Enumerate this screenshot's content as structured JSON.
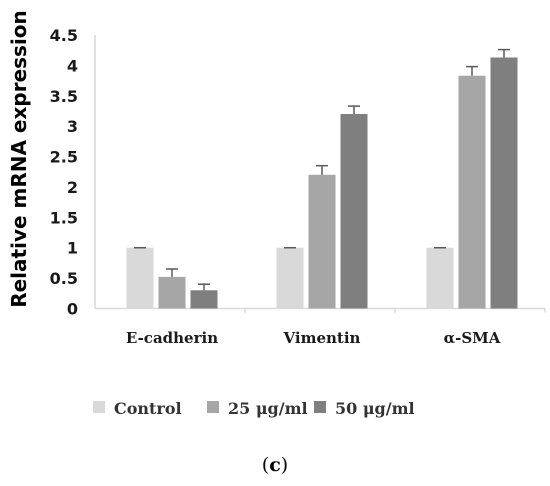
{
  "chart_data": {
    "type": "bar",
    "ylabel": "Relative mRNA expression",
    "ylim": [
      0,
      4.5
    ],
    "yticks": [
      "0",
      "0.5",
      "1",
      "1.5",
      "2",
      "2.5",
      "3",
      "3.5",
      "4",
      "4.5"
    ],
    "categories": [
      "E-cadherin",
      "Vimentin",
      "α-SMA"
    ],
    "series": [
      {
        "name": "Control",
        "color": "#d9d9d9",
        "values": [
          1.0,
          1.0,
          1.0
        ],
        "errors": [
          0.0,
          0.0,
          0.0
        ]
      },
      {
        "name": "25 μg/ml",
        "color": "#a6a6a6",
        "values": [
          0.52,
          2.2,
          3.83
        ],
        "errors": [
          0.13,
          0.15,
          0.15
        ]
      },
      {
        "name": "50 μg/ml",
        "color": "#7f7f7f",
        "values": [
          0.3,
          3.2,
          4.13
        ],
        "errors": [
          0.1,
          0.13,
          0.13
        ]
      }
    ],
    "grid": false,
    "legend_position": "bottom"
  },
  "caption": {
    "open": "(",
    "letter": "c",
    "close": ")"
  }
}
